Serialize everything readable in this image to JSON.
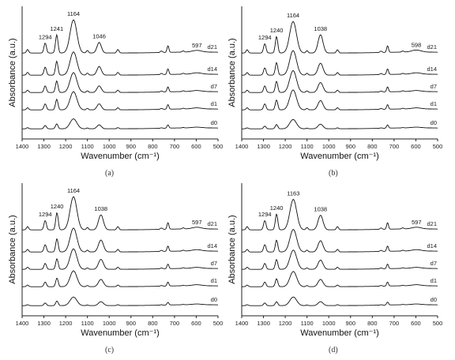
{
  "figure": {
    "panel_labels": [
      "(a)",
      "(b)",
      "(c)",
      "(d)"
    ]
  },
  "chart_data": [
    {
      "type": "line",
      "panel": "(a)",
      "xlabel": "Wavenumber (cm⁻¹)",
      "ylabel": "Absorbance (a.u.)",
      "xlim": [
        1400,
        500
      ],
      "x_reversed": true,
      "xticks": [
        1400,
        1300,
        1200,
        1100,
        1000,
        900,
        800,
        700,
        600,
        500
      ],
      "grid": false,
      "series": [
        {
          "name": "d0",
          "peaks": [
            [
              1294,
              0.1
            ],
            [
              1241,
              0.15
            ],
            [
              1164,
              0.3
            ],
            [
              1046,
              0.12
            ],
            [
              730,
              0.1
            ],
            [
              597,
              0.02
            ]
          ]
        },
        {
          "name": "d1",
          "peaks": [
            [
              1294,
              0.18
            ],
            [
              1241,
              0.32
            ],
            [
              1164,
              0.55
            ],
            [
              1046,
              0.18
            ],
            [
              730,
              0.14
            ],
            [
              597,
              0.03
            ]
          ]
        },
        {
          "name": "d7",
          "peaks": [
            [
              1294,
              0.2
            ],
            [
              1241,
              0.35
            ],
            [
              1164,
              0.6
            ],
            [
              1046,
              0.2
            ],
            [
              730,
              0.15
            ],
            [
              597,
              0.03
            ]
          ]
        },
        {
          "name": "d14",
          "peaks": [
            [
              1294,
              0.24
            ],
            [
              1241,
              0.42
            ],
            [
              1164,
              0.7
            ],
            [
              1046,
              0.26
            ],
            [
              730,
              0.17
            ],
            [
              597,
              0.04
            ]
          ]
        },
        {
          "name": "d21",
          "peaks": [
            [
              1294,
              0.3
            ],
            [
              1241,
              0.55
            ],
            [
              1164,
              1.0
            ],
            [
              1046,
              0.32
            ],
            [
              730,
              0.2
            ],
            [
              597,
              0.05
            ]
          ]
        }
      ],
      "annotations": [
        {
          "text": "1294",
          "x": 1294
        },
        {
          "text": "1241",
          "x": 1241
        },
        {
          "text": "1164",
          "x": 1164
        },
        {
          "text": "1046",
          "x": 1046
        },
        {
          "text": "597",
          "x": 597
        }
      ]
    },
    {
      "type": "line",
      "panel": "(b)",
      "xlabel": "Wavenumber (cm⁻¹)",
      "ylabel": "Absorbance (a.u.)",
      "xlim": [
        1400,
        500
      ],
      "x_reversed": true,
      "xticks": [
        1400,
        1300,
        1200,
        1100,
        1000,
        900,
        800,
        700,
        600,
        500
      ],
      "grid": false,
      "series": [
        {
          "name": "d0",
          "peaks": [
            [
              1294,
              0.08
            ],
            [
              1240,
              0.13
            ],
            [
              1164,
              0.28
            ],
            [
              1038,
              0.14
            ],
            [
              730,
              0.1
            ],
            [
              598,
              0.02
            ]
          ]
        },
        {
          "name": "d1",
          "peaks": [
            [
              1294,
              0.18
            ],
            [
              1240,
              0.3
            ],
            [
              1164,
              0.6
            ],
            [
              1038,
              0.28
            ],
            [
              730,
              0.14
            ],
            [
              598,
              0.03
            ]
          ]
        },
        {
          "name": "d7",
          "peaks": [
            [
              1294,
              0.2
            ],
            [
              1240,
              0.34
            ],
            [
              1164,
              0.66
            ],
            [
              1038,
              0.3
            ],
            [
              730,
              0.15
            ],
            [
              598,
              0.03
            ]
          ]
        },
        {
          "name": "d14",
          "peaks": [
            [
              1294,
              0.22
            ],
            [
              1240,
              0.38
            ],
            [
              1164,
              0.74
            ],
            [
              1038,
              0.36
            ],
            [
              730,
              0.17
            ],
            [
              598,
              0.04
            ]
          ]
        },
        {
          "name": "d21",
          "peaks": [
            [
              1294,
              0.28
            ],
            [
              1240,
              0.5
            ],
            [
              1164,
              0.95
            ],
            [
              1038,
              0.55
            ],
            [
              730,
              0.2
            ],
            [
              598,
              0.06
            ]
          ]
        }
      ],
      "annotations": [
        {
          "text": "1294",
          "x": 1294
        },
        {
          "text": "1240",
          "x": 1240
        },
        {
          "text": "1164",
          "x": 1164
        },
        {
          "text": "1038",
          "x": 1038
        },
        {
          "text": "598",
          "x": 598
        }
      ]
    },
    {
      "type": "line",
      "panel": "(c)",
      "xlabel": "Wavenumber (cm⁻¹)",
      "ylabel": "Absorbance (a.u.)",
      "xlim": [
        1400,
        500
      ],
      "x_reversed": true,
      "xticks": [
        1400,
        1300,
        1200,
        1100,
        1000,
        900,
        800,
        700,
        600,
        500
      ],
      "grid": false,
      "series": [
        {
          "name": "d0",
          "peaks": [
            [
              1294,
              0.08
            ],
            [
              1240,
              0.14
            ],
            [
              1164,
              0.26
            ],
            [
              1038,
              0.12
            ],
            [
              730,
              0.08
            ],
            [
              597,
              0.02
            ]
          ]
        },
        {
          "name": "d1",
          "peaks": [
            [
              1294,
              0.14
            ],
            [
              1240,
              0.26
            ],
            [
              1164,
              0.48
            ],
            [
              1038,
              0.22
            ],
            [
              730,
              0.12
            ],
            [
              597,
              0.03
            ]
          ]
        },
        {
          "name": "d7",
          "peaks": [
            [
              1294,
              0.18
            ],
            [
              1240,
              0.32
            ],
            [
              1164,
              0.62
            ],
            [
              1038,
              0.3
            ],
            [
              730,
              0.14
            ],
            [
              597,
              0.03
            ]
          ]
        },
        {
          "name": "d14",
          "peaks": [
            [
              1294,
              0.22
            ],
            [
              1240,
              0.4
            ],
            [
              1164,
              0.72
            ],
            [
              1038,
              0.36
            ],
            [
              730,
              0.16
            ],
            [
              597,
              0.04
            ]
          ]
        },
        {
          "name": "d21",
          "peaks": [
            [
              1294,
              0.28
            ],
            [
              1240,
              0.52
            ],
            [
              1164,
              1.0
            ],
            [
              1038,
              0.45
            ],
            [
              730,
              0.2
            ],
            [
              597,
              0.05
            ]
          ]
        }
      ],
      "annotations": [
        {
          "text": "1294",
          "x": 1294
        },
        {
          "text": "1240",
          "x": 1240
        },
        {
          "text": "1164",
          "x": 1164
        },
        {
          "text": "1038",
          "x": 1038
        },
        {
          "text": "597",
          "x": 597
        }
      ]
    },
    {
      "type": "line",
      "panel": "(d)",
      "xlabel": "Wavenumber (cm⁻¹)",
      "ylabel": "Absorbance (a.u.)",
      "xlim": [
        1400,
        500
      ],
      "x_reversed": true,
      "xticks": [
        1400,
        1300,
        1200,
        1100,
        1000,
        900,
        800,
        700,
        600,
        500
      ],
      "grid": false,
      "series": [
        {
          "name": "d0",
          "peaks": [
            [
              1294,
              0.08
            ],
            [
              1240,
              0.12
            ],
            [
              1163,
              0.26
            ],
            [
              1038,
              0.12
            ],
            [
              730,
              0.09
            ],
            [
              597,
              0.02
            ]
          ]
        },
        {
          "name": "d1",
          "peaks": [
            [
              1294,
              0.14
            ],
            [
              1240,
              0.24
            ],
            [
              1163,
              0.46
            ],
            [
              1038,
              0.22
            ],
            [
              730,
              0.12
            ],
            [
              597,
              0.03
            ]
          ]
        },
        {
          "name": "d7",
          "peaks": [
            [
              1294,
              0.18
            ],
            [
              1240,
              0.3
            ],
            [
              1163,
              0.58
            ],
            [
              1038,
              0.28
            ],
            [
              730,
              0.14
            ],
            [
              597,
              0.03
            ]
          ]
        },
        {
          "name": "d14",
          "peaks": [
            [
              1294,
              0.22
            ],
            [
              1240,
              0.36
            ],
            [
              1163,
              0.68
            ],
            [
              1038,
              0.34
            ],
            [
              730,
              0.16
            ],
            [
              597,
              0.04
            ]
          ]
        },
        {
          "name": "d21",
          "peaks": [
            [
              1294,
              0.28
            ],
            [
              1240,
              0.48
            ],
            [
              1163,
              0.92
            ],
            [
              1038,
              0.44
            ],
            [
              730,
              0.2
            ],
            [
              597,
              0.05
            ]
          ]
        }
      ],
      "annotations": [
        {
          "text": "1294",
          "x": 1294
        },
        {
          "text": "1240",
          "x": 1240
        },
        {
          "text": "1163",
          "x": 1163
        },
        {
          "text": "1038",
          "x": 1038
        },
        {
          "text": "597",
          "x": 597
        }
      ]
    }
  ]
}
